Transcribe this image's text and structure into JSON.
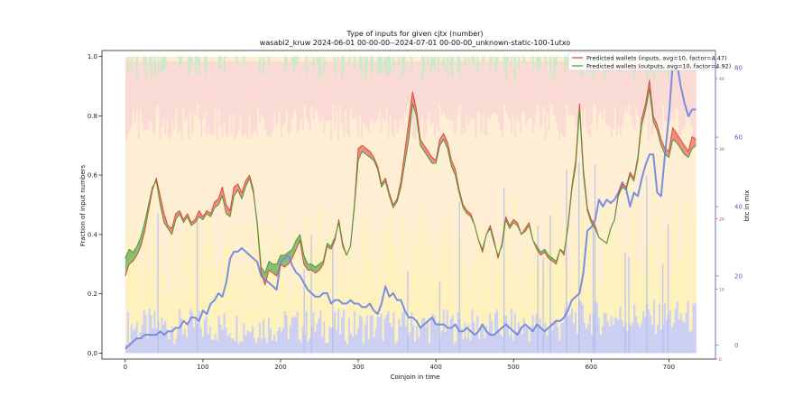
{
  "chart_data": {
    "type": "line",
    "title": "Type of inputs for given cjtx (number)",
    "subtitle": "wasabi2_kruw 2024-06-01 00-00-00--2024-07-01 00-00-00_unknown-static-100-1utxo",
    "xlabel": "Coinjoin in time",
    "ylabel": "Fraction of input numbers",
    "y2label": "btc in mix",
    "xlim": [
      -30,
      760
    ],
    "ylim": [
      -0.02,
      1.02
    ],
    "y2lim": [
      -4,
      85
    ],
    "y3lim": [
      0,
      44
    ],
    "x_ticks": [
      0,
      100,
      200,
      300,
      400,
      500,
      600,
      700
    ],
    "y_ticks": [
      0.0,
      0.2,
      0.4,
      0.6,
      0.8,
      1.0
    ],
    "y2_ticks": [
      0,
      20,
      40,
      60,
      80
    ],
    "y3_ticks": [
      0,
      10,
      20,
      30,
      40
    ],
    "grid": false,
    "legend_position": "top-right",
    "colors": {
      "inputs_line": "#d94a3a",
      "outputs_line": "#4a9a3a",
      "btc_line": "#7a8ee0",
      "fill_red": "#e84a4a",
      "fill_green": "#3a9a3a",
      "band_blue": "#c8ccf5",
      "band_yellow": "#fdf2b8",
      "band_orange": "#fde1b0",
      "band_pink": "#f9d6d6",
      "band_green": "#c9eac9",
      "y3_axis": "#d04030"
    },
    "series": [
      {
        "name": "Predicted wallets (inputs, avg=10, factor=4.47)",
        "axis": "left",
        "x": [
          0,
          5,
          10,
          15,
          20,
          25,
          30,
          35,
          40,
          45,
          50,
          55,
          60,
          65,
          70,
          75,
          80,
          85,
          90,
          95,
          100,
          105,
          110,
          115,
          120,
          125,
          130,
          135,
          140,
          145,
          150,
          155,
          160,
          165,
          170,
          175,
          180,
          185,
          190,
          195,
          200,
          205,
          210,
          215,
          220,
          225,
          230,
          235,
          240,
          245,
          250,
          255,
          260,
          265,
          270,
          275,
          280,
          285,
          290,
          295,
          300,
          305,
          310,
          315,
          320,
          325,
          330,
          335,
          340,
          345,
          350,
          355,
          360,
          365,
          370,
          375,
          380,
          385,
          390,
          395,
          400,
          405,
          410,
          415,
          420,
          425,
          430,
          435,
          440,
          445,
          450,
          455,
          460,
          465,
          470,
          475,
          480,
          485,
          490,
          495,
          500,
          505,
          510,
          515,
          520,
          525,
          530,
          535,
          540,
          545,
          550,
          555,
          560,
          565,
          570,
          575,
          580,
          585,
          590,
          595,
          600,
          605,
          610,
          615,
          620,
          625,
          630,
          635,
          640,
          645,
          650,
          655,
          660,
          665,
          670,
          675,
          680,
          685,
          690,
          695,
          700,
          705,
          710,
          715,
          720,
          725,
          730,
          735
        ],
        "values": [
          0.26,
          0.3,
          0.31,
          0.33,
          0.36,
          0.41,
          0.48,
          0.55,
          0.59,
          0.53,
          0.47,
          0.43,
          0.42,
          0.47,
          0.48,
          0.45,
          0.47,
          0.44,
          0.45,
          0.48,
          0.46,
          0.48,
          0.47,
          0.51,
          0.52,
          0.56,
          0.5,
          0.48,
          0.56,
          0.57,
          0.54,
          0.58,
          0.6,
          0.55,
          0.43,
          0.27,
          0.23,
          0.28,
          0.27,
          0.26,
          0.3,
          0.29,
          0.3,
          0.32,
          0.35,
          0.38,
          0.3,
          0.28,
          0.28,
          0.27,
          0.28,
          0.3,
          0.36,
          0.35,
          0.38,
          0.45,
          0.37,
          0.33,
          0.36,
          0.5,
          0.69,
          0.7,
          0.69,
          0.68,
          0.66,
          0.63,
          0.57,
          0.59,
          0.54,
          0.5,
          0.52,
          0.58,
          0.68,
          0.78,
          0.88,
          0.82,
          0.72,
          0.7,
          0.68,
          0.66,
          0.65,
          0.72,
          0.74,
          0.71,
          0.65,
          0.62,
          0.55,
          0.5,
          0.48,
          0.47,
          0.43,
          0.38,
          0.34,
          0.4,
          0.43,
          0.38,
          0.32,
          0.37,
          0.46,
          0.43,
          0.45,
          0.44,
          0.4,
          0.42,
          0.44,
          0.38,
          0.35,
          0.33,
          0.34,
          0.32,
          0.31,
          0.3,
          0.35,
          0.33,
          0.43,
          0.56,
          0.65,
          0.84,
          0.62,
          0.49,
          0.45,
          0.43,
          0.39,
          0.38,
          0.37,
          0.42,
          0.45,
          0.54,
          0.57,
          0.56,
          0.61,
          0.59,
          0.66,
          0.79,
          0.84,
          0.92,
          0.8,
          0.77,
          0.72,
          0.69,
          0.68,
          0.76,
          0.74,
          0.72,
          0.7,
          0.68,
          0.73,
          0.72
        ]
      },
      {
        "name": "Predicted wallets (outputs, avg=10, factor=4.92)",
        "axis": "left",
        "x": [
          0,
          5,
          10,
          15,
          20,
          25,
          30,
          35,
          40,
          45,
          50,
          55,
          60,
          65,
          70,
          75,
          80,
          85,
          90,
          95,
          100,
          105,
          110,
          115,
          120,
          125,
          130,
          135,
          140,
          145,
          150,
          155,
          160,
          165,
          170,
          175,
          180,
          185,
          190,
          195,
          200,
          205,
          210,
          215,
          220,
          225,
          230,
          235,
          240,
          245,
          250,
          255,
          260,
          265,
          270,
          275,
          280,
          285,
          290,
          295,
          300,
          305,
          310,
          315,
          320,
          325,
          330,
          335,
          340,
          345,
          350,
          355,
          360,
          365,
          370,
          375,
          380,
          385,
          390,
          395,
          400,
          405,
          410,
          415,
          420,
          425,
          430,
          435,
          440,
          445,
          450,
          455,
          460,
          465,
          470,
          475,
          480,
          485,
          490,
          495,
          500,
          505,
          510,
          515,
          520,
          525,
          530,
          535,
          540,
          545,
          550,
          555,
          560,
          565,
          570,
          575,
          580,
          585,
          590,
          595,
          600,
          605,
          610,
          615,
          620,
          625,
          630,
          635,
          640,
          645,
          650,
          655,
          660,
          665,
          670,
          675,
          680,
          685,
          690,
          695,
          700,
          705,
          710,
          715,
          720,
          725,
          730,
          735
        ],
        "values": [
          0.32,
          0.35,
          0.34,
          0.36,
          0.39,
          0.44,
          0.5,
          0.56,
          0.58,
          0.5,
          0.44,
          0.42,
          0.4,
          0.45,
          0.47,
          0.44,
          0.46,
          0.43,
          0.44,
          0.46,
          0.45,
          0.47,
          0.46,
          0.49,
          0.5,
          0.53,
          0.47,
          0.46,
          0.53,
          0.55,
          0.52,
          0.56,
          0.59,
          0.54,
          0.44,
          0.29,
          0.27,
          0.31,
          0.3,
          0.3,
          0.33,
          0.33,
          0.34,
          0.35,
          0.38,
          0.4,
          0.33,
          0.3,
          0.3,
          0.29,
          0.3,
          0.31,
          0.37,
          0.36,
          0.39,
          0.44,
          0.36,
          0.33,
          0.36,
          0.49,
          0.65,
          0.68,
          0.67,
          0.66,
          0.65,
          0.62,
          0.56,
          0.58,
          0.53,
          0.49,
          0.51,
          0.56,
          0.64,
          0.72,
          0.84,
          0.8,
          0.7,
          0.68,
          0.66,
          0.64,
          0.64,
          0.7,
          0.72,
          0.69,
          0.63,
          0.6,
          0.54,
          0.49,
          0.47,
          0.46,
          0.43,
          0.38,
          0.35,
          0.4,
          0.42,
          0.37,
          0.33,
          0.36,
          0.45,
          0.42,
          0.44,
          0.43,
          0.4,
          0.41,
          0.43,
          0.38,
          0.36,
          0.34,
          0.35,
          0.33,
          0.32,
          0.31,
          0.35,
          0.34,
          0.42,
          0.55,
          0.63,
          0.82,
          0.6,
          0.48,
          0.44,
          0.42,
          0.39,
          0.38,
          0.37,
          0.42,
          0.45,
          0.53,
          0.56,
          0.55,
          0.6,
          0.58,
          0.65,
          0.77,
          0.82,
          0.89,
          0.78,
          0.75,
          0.7,
          0.67,
          0.66,
          0.72,
          0.71,
          0.69,
          0.67,
          0.66,
          0.69,
          0.7
        ]
      },
      {
        "name": "btc in mix",
        "axis": "right",
        "x": [
          0,
          5,
          10,
          15,
          20,
          25,
          30,
          35,
          40,
          45,
          50,
          55,
          60,
          65,
          70,
          75,
          80,
          85,
          90,
          95,
          100,
          105,
          110,
          115,
          120,
          125,
          130,
          135,
          140,
          145,
          150,
          155,
          160,
          165,
          170,
          175,
          180,
          185,
          190,
          195,
          200,
          205,
          210,
          215,
          220,
          225,
          230,
          235,
          240,
          245,
          250,
          255,
          260,
          265,
          270,
          275,
          280,
          285,
          290,
          295,
          300,
          305,
          310,
          315,
          320,
          325,
          330,
          335,
          340,
          345,
          350,
          355,
          360,
          365,
          370,
          375,
          380,
          385,
          390,
          395,
          400,
          405,
          410,
          415,
          420,
          425,
          430,
          435,
          440,
          445,
          450,
          455,
          460,
          465,
          470,
          475,
          480,
          485,
          490,
          495,
          500,
          505,
          510,
          515,
          520,
          525,
          530,
          535,
          540,
          545,
          550,
          555,
          560,
          565,
          570,
          575,
          580,
          585,
          590,
          595,
          600,
          605,
          610,
          615,
          620,
          625,
          630,
          635,
          640,
          645,
          650,
          655,
          660,
          665,
          670,
          675,
          680,
          685,
          690,
          695,
          700,
          705,
          710,
          715,
          720,
          725,
          730,
          735
        ],
        "values": [
          -1,
          0,
          1,
          2,
          2,
          3,
          3,
          3,
          3,
          4,
          3,
          4,
          4,
          5,
          5,
          7,
          6,
          8,
          8,
          7,
          10,
          9,
          12,
          13,
          15,
          14,
          18,
          25,
          27,
          27,
          28,
          27,
          26,
          25,
          24,
          20,
          19,
          18,
          17,
          16,
          24,
          25,
          26,
          23,
          21,
          20,
          18,
          16,
          15,
          14,
          14,
          15,
          15,
          12,
          13,
          13,
          12,
          12,
          13,
          12,
          12,
          11,
          11,
          12,
          10,
          9,
          12,
          17,
          14,
          15,
          13,
          13,
          10,
          8,
          8,
          7,
          5,
          6,
          7,
          8,
          6,
          6,
          6,
          5,
          5,
          6,
          4,
          4,
          5,
          4,
          3,
          4,
          6,
          4,
          3,
          3,
          4,
          5,
          6,
          5,
          4,
          3,
          5,
          6,
          5,
          4,
          6,
          5,
          4,
          5,
          6,
          7,
          7,
          8,
          10,
          13,
          14,
          15,
          21,
          33,
          34,
          36,
          42,
          40,
          42,
          41,
          42,
          44,
          47,
          45,
          40,
          44,
          43,
          48,
          52,
          55,
          55,
          44,
          43,
          55,
          66,
          81,
          82,
          75,
          70,
          66,
          68,
          68
        ]
      }
    ]
  }
}
